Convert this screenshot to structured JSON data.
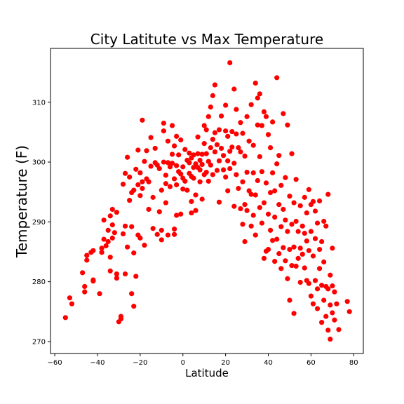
{
  "chart_data": {
    "type": "scatter",
    "title": "City Latitute vs Max Temperature",
    "xlabel": "Latitude",
    "ylabel": "Temperature (F)",
    "xlim": [
      -62,
      84.5
    ],
    "ylim": [
      268,
      319
    ],
    "xticks": [
      -60,
      -40,
      -20,
      0,
      20,
      40,
      60,
      80
    ],
    "yticks": [
      270,
      280,
      290,
      300,
      310
    ],
    "grid": false,
    "legend": "none",
    "marker_color": "#ff0000",
    "points": [
      [
        -55,
        274
      ],
      [
        -53,
        277.3
      ],
      [
        -52,
        276.3
      ],
      [
        -47,
        281.5
      ],
      [
        -46,
        279.2
      ],
      [
        -46,
        278.3
      ],
      [
        -45,
        283.6
      ],
      [
        -45,
        284.4
      ],
      [
        -43,
        284.9
      ],
      [
        -42,
        280.3
      ],
      [
        -42,
        280.1
      ],
      [
        -42,
        285.2
      ],
      [
        -39,
        278
      ],
      [
        -38,
        285.6
      ],
      [
        -38,
        284.9
      ],
      [
        -37,
        287.1
      ],
      [
        -37,
        290.3
      ],
      [
        -36,
        286
      ],
      [
        -35,
        286.7
      ],
      [
        -35,
        288.6
      ],
      [
        -34,
        291
      ],
      [
        -34,
        284.1
      ],
      [
        -34,
        281.8
      ],
      [
        -33,
        287.3
      ],
      [
        -33,
        289.5
      ],
      [
        -33,
        292.1
      ],
      [
        -32,
        288.2
      ],
      [
        -31,
        281.3
      ],
      [
        -31,
        280.6
      ],
      [
        -31,
        291.6
      ],
      [
        -30,
        273.3
      ],
      [
        -29,
        273.8
      ],
      [
        -29,
        274.2
      ],
      [
        -28,
        288
      ],
      [
        -28,
        296.3
      ],
      [
        -27,
        289.3
      ],
      [
        -27,
        281.3
      ],
      [
        -27,
        298.1
      ],
      [
        -26,
        300.8
      ],
      [
        -26,
        285.8
      ],
      [
        -25,
        293.6
      ],
      [
        -25,
        297.5
      ],
      [
        -24,
        278
      ],
      [
        -24,
        289.2
      ],
      [
        -24,
        294.9
      ],
      [
        -23,
        284.8
      ],
      [
        -23,
        275.9
      ],
      [
        -23,
        295.3
      ],
      [
        -22,
        280.9
      ],
      [
        -22,
        298.8
      ],
      [
        -21,
        296.2
      ],
      [
        -21,
        287.8
      ],
      [
        -21,
        302
      ],
      [
        -20,
        298.2
      ],
      [
        -20,
        287.3
      ],
      [
        -20,
        294.4
      ],
      [
        -19,
        296.7
      ],
      [
        -19,
        295.6
      ],
      [
        -19,
        307
      ],
      [
        -18,
        300.1
      ],
      [
        -18,
        286.1
      ],
      [
        -17,
        297.2
      ],
      [
        -17,
        301.9
      ],
      [
        -16,
        292.1
      ],
      [
        -16,
        296.7
      ],
      [
        -15,
        304.1
      ],
      [
        -15,
        299.3
      ],
      [
        -14,
        288.9
      ],
      [
        -14,
        294.1
      ],
      [
        -13,
        299.9
      ],
      [
        -13,
        302.3
      ],
      [
        -12,
        287.9
      ],
      [
        -12,
        299.5
      ],
      [
        -11,
        291.7
      ],
      [
        -11,
        298.9
      ],
      [
        -10,
        287
      ],
      [
        -10,
        288.6
      ],
      [
        -10,
        295.3
      ],
      [
        -9,
        306.5
      ],
      [
        -9,
        300
      ],
      [
        -9,
        305.2
      ],
      [
        -8,
        293.2
      ],
      [
        -8,
        297.8
      ],
      [
        -8,
        296.4
      ],
      [
        -7,
        287.8
      ],
      [
        -7,
        299.9
      ],
      [
        -7,
        303.5
      ],
      [
        -6,
        299.2
      ],
      [
        -6,
        295.9
      ],
      [
        -5,
        306.1
      ],
      [
        -5,
        301.3
      ],
      [
        -5,
        299.8
      ],
      [
        -4,
        287.9
      ],
      [
        -4,
        288.8
      ],
      [
        -4,
        297.2
      ],
      [
        -4,
        302.7
      ],
      [
        -3,
        291.1
      ],
      [
        -3,
        296.2
      ],
      [
        -3,
        299.4
      ],
      [
        -3,
        304.3
      ],
      [
        -2,
        298.4
      ],
      [
        -2,
        301.2
      ],
      [
        -1,
        298
      ],
      [
        -1,
        291.3
      ],
      [
        -1,
        303.7
      ],
      [
        0,
        295.5
      ],
      [
        0,
        299.2
      ],
      [
        0,
        297.3
      ],
      [
        1,
        302.1
      ],
      [
        1,
        296.8
      ],
      [
        2,
        300.3
      ],
      [
        2,
        295.3
      ],
      [
        3,
        298.1
      ],
      [
        3,
        301.5
      ],
      [
        3,
        299.9
      ],
      [
        4,
        291.5
      ],
      [
        4,
        293.4
      ],
      [
        4,
        300.7
      ],
      [
        4,
        297.6
      ],
      [
        5,
        297.3
      ],
      [
        5,
        299.1
      ],
      [
        5,
        301.2
      ],
      [
        6,
        291.9
      ],
      [
        6,
        299.7
      ],
      [
        6,
        294.5
      ],
      [
        7,
        301.4
      ],
      [
        7,
        299.1
      ],
      [
        7,
        304.2
      ],
      [
        8,
        296.7
      ],
      [
        8,
        300.3
      ],
      [
        8,
        298.7
      ],
      [
        9,
        293.8
      ],
      [
        9,
        299.6
      ],
      [
        9,
        301.3
      ],
      [
        10,
        303.1
      ],
      [
        10,
        306.1
      ],
      [
        10,
        297.9
      ],
      [
        11,
        305.4
      ],
      [
        11,
        298.3
      ],
      [
        11,
        301.4
      ],
      [
        12,
        300.1
      ],
      [
        12,
        307.6
      ],
      [
        12,
        296.8
      ],
      [
        13,
        309.2
      ],
      [
        13,
        302.4
      ],
      [
        13,
        299.5
      ],
      [
        14,
        311.1
      ],
      [
        14,
        303.8
      ],
      [
        14,
        297.9
      ],
      [
        15,
        312.9
      ],
      [
        15,
        301.7
      ],
      [
        15,
        304.9
      ],
      [
        16,
        298.6
      ],
      [
        16,
        302.9
      ],
      [
        17,
        305.4
      ],
      [
        17,
        300.2
      ],
      [
        17,
        293.3
      ],
      [
        18,
        307.7
      ],
      [
        18,
        302.3
      ],
      [
        19,
        301.1
      ],
      [
        19,
        298.7
      ],
      [
        20,
        309.5
      ],
      [
        20,
        297.5
      ],
      [
        20,
        305.2
      ],
      [
        21,
        300.2
      ],
      [
        21,
        295.2
      ],
      [
        21,
        304.3
      ],
      [
        22,
        316.6
      ],
      [
        22,
        301.8
      ],
      [
        22,
        298.9
      ],
      [
        23,
        305.1
      ],
      [
        23,
        302.5
      ],
      [
        24,
        312.2
      ],
      [
        24,
        292.6
      ],
      [
        24,
        299.8
      ],
      [
        25,
        308.8
      ],
      [
        25,
        304.7
      ],
      [
        25,
        297.9
      ],
      [
        26,
        302.4
      ],
      [
        26,
        295.6
      ],
      [
        27,
        306.6
      ],
      [
        27,
        292.2
      ],
      [
        27,
        301.7
      ],
      [
        28,
        289.6
      ],
      [
        28,
        304.8
      ],
      [
        28,
        296.7
      ],
      [
        29,
        286.7
      ],
      [
        29,
        292.9
      ],
      [
        29,
        301
      ],
      [
        30,
        307.6
      ],
      [
        30,
        298.3
      ],
      [
        30,
        291.9
      ],
      [
        31,
        303.5
      ],
      [
        31,
        295.2
      ],
      [
        32,
        289.3
      ],
      [
        32,
        309.6
      ],
      [
        32,
        294.6
      ],
      [
        33,
        298.2
      ],
      [
        33,
        302.8
      ],
      [
        33,
        291.1
      ],
      [
        34,
        313.2
      ],
      [
        34,
        294.5
      ],
      [
        34,
        287.8
      ],
      [
        35,
        306.2
      ],
      [
        35,
        310.7
      ],
      [
        35,
        296.9
      ],
      [
        36,
        311.4
      ],
      [
        36,
        300.9
      ],
      [
        36,
        292.4
      ],
      [
        37,
        306.1
      ],
      [
        37,
        298.4
      ],
      [
        37,
        289.8
      ],
      [
        38,
        308.4
      ],
      [
        38,
        293.2
      ],
      [
        38,
        283.9
      ],
      [
        39,
        285.1
      ],
      [
        39,
        307.6
      ],
      [
        39,
        296.5
      ],
      [
        40,
        304.6
      ],
      [
        40,
        291.3
      ],
      [
        40,
        285.4
      ],
      [
        41,
        302.4
      ],
      [
        41,
        294.9
      ],
      [
        41,
        288.6
      ],
      [
        42,
        306.7
      ],
      [
        42,
        286.9
      ],
      [
        42,
        298.2
      ],
      [
        43,
        283.4
      ],
      [
        43,
        290.8
      ],
      [
        43,
        295.2
      ],
      [
        44,
        314.1
      ],
      [
        44,
        299.7
      ],
      [
        44,
        287.1
      ],
      [
        45,
        284.7
      ],
      [
        45,
        292.9
      ],
      [
        45,
        301.1
      ],
      [
        46,
        282.2
      ],
      [
        46,
        289.2
      ],
      [
        46,
        296.1
      ],
      [
        47,
        308.1
      ],
      [
        47,
        285.7
      ],
      [
        47,
        292.1
      ],
      [
        48,
        283.5
      ],
      [
        48,
        290.3
      ],
      [
        48,
        297.4
      ],
      [
        49,
        306.2
      ],
      [
        49,
        280.5
      ],
      [
        49,
        288.4
      ],
      [
        50,
        276.9
      ],
      [
        50,
        294.3
      ],
      [
        50,
        285.4
      ],
      [
        51,
        301.4
      ],
      [
        51,
        282.7
      ],
      [
        51,
        289.6
      ],
      [
        52,
        274.7
      ],
      [
        52,
        293.2
      ],
      [
        52,
        285.8
      ],
      [
        53,
        297.1
      ],
      [
        53,
        282.6
      ],
      [
        53,
        290.1
      ],
      [
        54,
        288.4
      ],
      [
        54,
        283.9
      ],
      [
        55,
        292.7
      ],
      [
        55,
        285.6
      ],
      [
        55,
        279.9
      ],
      [
        56,
        289.3
      ],
      [
        56,
        284.6
      ],
      [
        57,
        294.1
      ],
      [
        57,
        282.3
      ],
      [
        57,
        288.1
      ],
      [
        58,
        280.2
      ],
      [
        58,
        286.8
      ],
      [
        58,
        291.5
      ],
      [
        59,
        295.4
      ],
      [
        59,
        285.2
      ],
      [
        59,
        279.7
      ],
      [
        60,
        277.6
      ],
      [
        60,
        288.4
      ],
      [
        60,
        292.9
      ],
      [
        61,
        293.4
      ],
      [
        61,
        276.3
      ],
      [
        61,
        284.3
      ],
      [
        62,
        291.8
      ],
      [
        62,
        287.2
      ],
      [
        62,
        280.2
      ],
      [
        63,
        278.8
      ],
      [
        63,
        275.5
      ],
      [
        63,
        289.8
      ],
      [
        64,
        282.2
      ],
      [
        64,
        293.5
      ],
      [
        64,
        285.4
      ],
      [
        65,
        273.2
      ],
      [
        65,
        286.7
      ],
      [
        65,
        279.4
      ],
      [
        66,
        290.1
      ],
      [
        66,
        276.9
      ],
      [
        66,
        283.3
      ],
      [
        67,
        289.3
      ],
      [
        67,
        279.2
      ],
      [
        67,
        274.2
      ],
      [
        68,
        294.6
      ],
      [
        68,
        278.8
      ],
      [
        68,
        271.9
      ],
      [
        69,
        276.1
      ],
      [
        69,
        281.1
      ],
      [
        69,
        270.4
      ],
      [
        70,
        285.6
      ],
      [
        70,
        279.3
      ],
      [
        70,
        274.8
      ],
      [
        71,
        273.6
      ],
      [
        71,
        278.3
      ],
      [
        72,
        276.3
      ],
      [
        73,
        272
      ],
      [
        77,
        276.7
      ],
      [
        78,
        275
      ]
    ]
  }
}
